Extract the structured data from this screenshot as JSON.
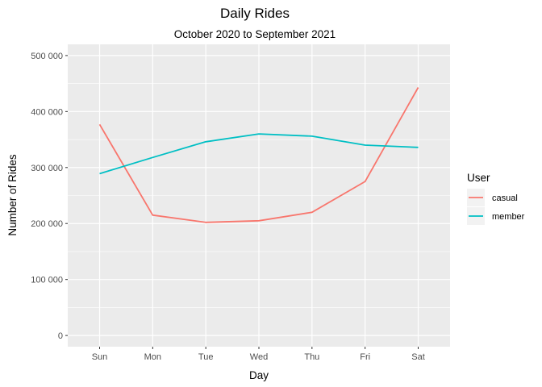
{
  "chart_data": {
    "type": "line",
    "title": "Daily Rides",
    "subtitle": "October 2020 to September 2021",
    "xlabel": "Day",
    "ylabel": "Number of Rides",
    "categories": [
      "Sun",
      "Mon",
      "Tue",
      "Wed",
      "Thu",
      "Fri",
      "Sat"
    ],
    "ylim": [
      -20000,
      520000
    ],
    "yticks": [
      0,
      100000,
      200000,
      300000,
      400000,
      500000
    ],
    "ytick_labels": [
      "0",
      "100 000",
      "200 000",
      "300 000",
      "400 000",
      "500 000"
    ],
    "grid": true,
    "legend": {
      "title": "User",
      "position": "right"
    },
    "series": [
      {
        "name": "casual",
        "color": "#F8766D",
        "values": [
          377000,
          215000,
          202000,
          205000,
          220000,
          275000,
          443000
        ]
      },
      {
        "name": "member",
        "color": "#00BFC4",
        "values": [
          289000,
          318000,
          346000,
          360000,
          356000,
          340000,
          336000
        ]
      }
    ]
  }
}
